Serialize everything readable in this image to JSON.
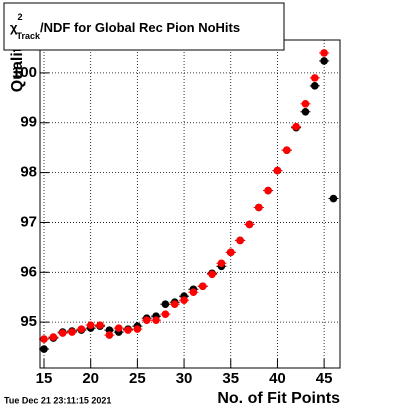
{
  "chart_data": {
    "type": "scatter",
    "title_parts": [
      "χ",
      "2",
      "Track",
      "/NDF for Global Rec Pion NoHits"
    ],
    "x_label": "No. of Fit Points",
    "y_label": "Quality",
    "footer": "Tue Dec 21 23:11:15 2021",
    "x": [
      15,
      16,
      17,
      18,
      19,
      20,
      21,
      22,
      23,
      24,
      25,
      26,
      27,
      28,
      29,
      30,
      31,
      32,
      33,
      34,
      35,
      36,
      37,
      38,
      39,
      40,
      41,
      42,
      43,
      44,
      45,
      46
    ],
    "series": [
      {
        "color": "#000000",
        "values": [
          94.46,
          94.68,
          94.8,
          94.82,
          94.84,
          94.88,
          94.92,
          94.84,
          94.8,
          94.86,
          94.92,
          95.08,
          95.12,
          95.36,
          95.4,
          95.52,
          95.66,
          95.72,
          95.98,
          96.12,
          96.4,
          96.64,
          96.96,
          97.3,
          97.64,
          98.04,
          98.45,
          98.9,
          99.22,
          99.74,
          100.24,
          97.48
        ]
      },
      {
        "color": "#ff0000",
        "values": [
          94.66,
          94.7,
          94.78,
          94.8,
          94.86,
          94.94,
          94.94,
          94.74,
          94.88,
          94.84,
          94.86,
          95.04,
          95.04,
          95.16,
          95.36,
          95.44,
          95.6,
          95.72,
          95.96,
          96.18,
          96.4,
          96.64,
          96.96,
          97.3,
          97.64,
          98.04,
          98.45,
          98.92,
          99.38,
          99.9,
          100.4,
          null
        ]
      }
    ],
    "xlim": [
      14.57,
      46.7
    ],
    "ylim": [
      94.08,
      100.66
    ],
    "xticks": [
      15,
      20,
      25,
      30,
      35,
      40,
      45
    ],
    "yticks": [
      95,
      96,
      97,
      98,
      99,
      100
    ],
    "grid": true
  }
}
